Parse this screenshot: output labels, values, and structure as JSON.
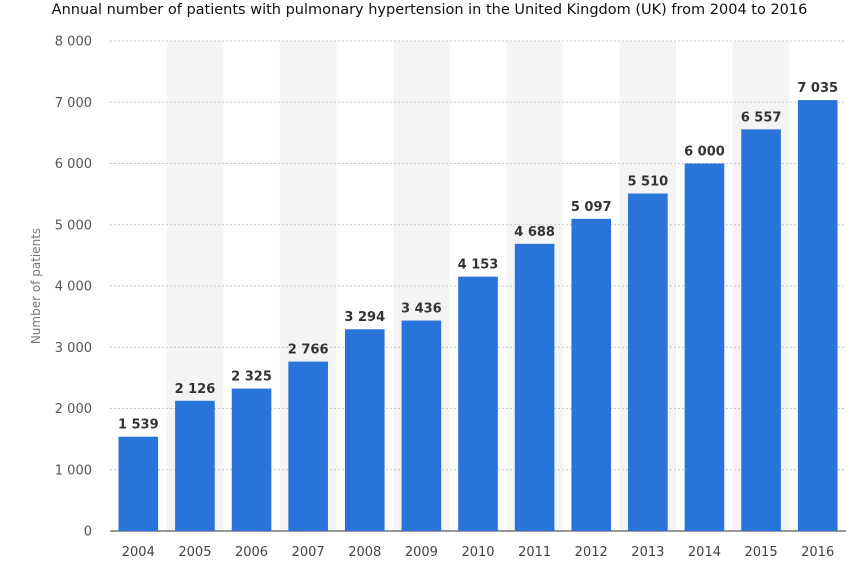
{
  "chart_data": {
    "type": "bar",
    "title": "Annual number of patients with pulmonary hypertension in the United Kingdom (UK) from 2004 to 2016",
    "xlabel": "",
    "ylabel": "Number of patients",
    "categories": [
      "2004",
      "2005",
      "2006",
      "2007",
      "2008",
      "2009",
      "2010",
      "2011",
      "2012",
      "2013",
      "2014",
      "2015",
      "2016"
    ],
    "values": [
      1539,
      2126,
      2325,
      2766,
      3294,
      3436,
      4153,
      4688,
      5097,
      5510,
      6000,
      6557,
      7035
    ],
    "data_labels": [
      "1 539",
      "2 126",
      "2 325",
      "2 766",
      "3 294",
      "3 436",
      "4 153",
      "4 688",
      "5 097",
      "5 510",
      "6 000",
      "6 557",
      "7 035"
    ],
    "yticks": [
      0,
      1000,
      2000,
      3000,
      4000,
      5000,
      6000,
      7000,
      8000
    ],
    "ytick_labels": [
      "0",
      "1 000",
      "2 000",
      "3 000",
      "4 000",
      "5 000",
      "6 000",
      "7 000",
      "8 000"
    ],
    "ylim": [
      0,
      8000
    ],
    "grid": true,
    "legend": "none",
    "bar_color": "#2874D9",
    "band_color": "#F4F4F4",
    "grid_color": "#C8C8C8"
  }
}
